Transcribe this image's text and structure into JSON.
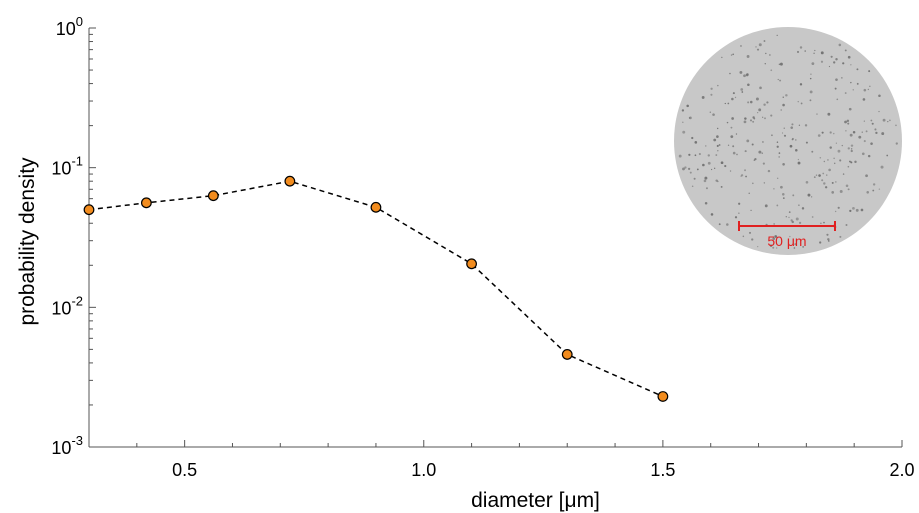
{
  "chart_data": {
    "type": "line",
    "title": "",
    "xlabel": "diameter [μm]",
    "ylabel": "probability density",
    "xlim": [
      0.3,
      2.0
    ],
    "ylim": [
      0.001,
      1
    ],
    "yscale": "log",
    "grid": false,
    "x_ticks": [
      {
        "value": 0.5,
        "label": "0.5"
      },
      {
        "value": 1.0,
        "label": "1.0"
      },
      {
        "value": 1.5,
        "label": "1.5"
      },
      {
        "value": 2.0,
        "label": "2.0"
      }
    ],
    "y_ticks": [
      {
        "value": 0.001,
        "base": "10",
        "exp": "-3"
      },
      {
        "value": 0.01,
        "base": "10",
        "exp": "-2"
      },
      {
        "value": 0.1,
        "base": "10",
        "exp": "-1"
      },
      {
        "value": 1,
        "base": "10",
        "exp": "0"
      }
    ],
    "series": [
      {
        "x": [
          0.3,
          0.42,
          0.56,
          0.72,
          0.9,
          1.1,
          1.3,
          1.5
        ],
        "y": [
          0.05,
          0.056,
          0.063,
          0.08,
          0.052,
          0.0205,
          0.0046,
          0.0023
        ],
        "line_style": "dashed",
        "marker": "circle",
        "marker_color": "#f28c1e",
        "line_color": "#000000"
      }
    ],
    "inset": {
      "description_kind": "micrograph",
      "scalebar_label": "50 μm",
      "scalebar_color": "#e02020",
      "background_color": "#c8c8c8"
    }
  }
}
